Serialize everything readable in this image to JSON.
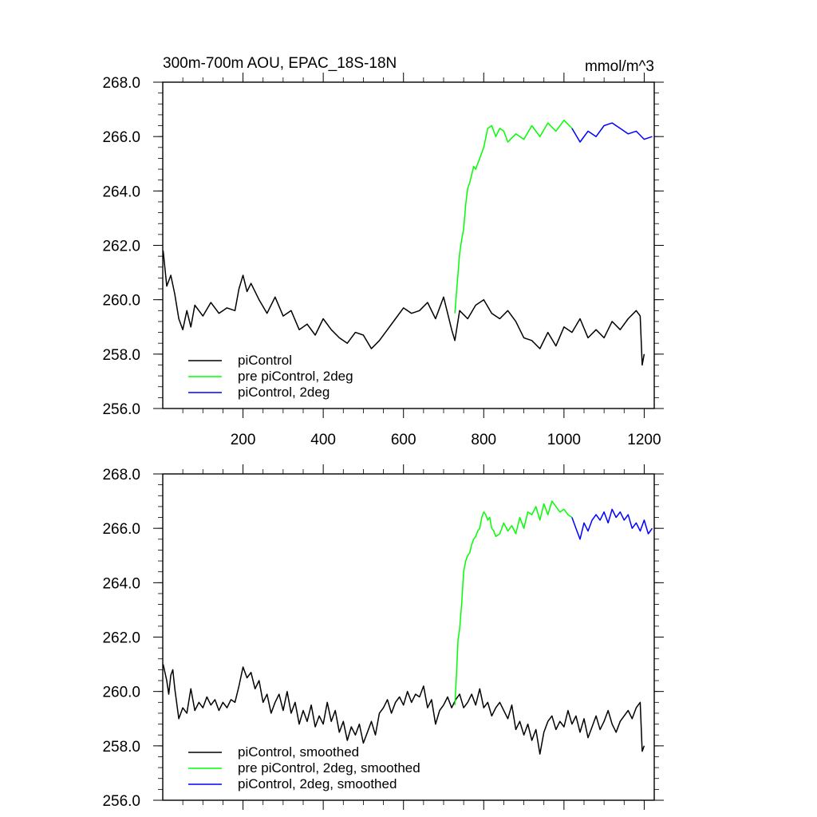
{
  "chart_data": [
    {
      "type": "line",
      "title": "300m-700m AOU, EPAC_18S-18N",
      "units": "mmol/m^3",
      "xlim": [
        0,
        1225
      ],
      "ylim": [
        256.0,
        268.0
      ],
      "x_ticks": [
        200,
        400,
        600,
        800,
        1000,
        1200
      ],
      "x_tick_labels": [
        "200",
        "400",
        "600",
        "800",
        "1000",
        "1200"
      ],
      "y_ticks": [
        256.0,
        258.0,
        260.0,
        262.0,
        264.0,
        266.0,
        268.0
      ],
      "y_tick_labels": [
        "256.0",
        "258.0",
        "260.0",
        "262.0",
        "264.0",
        "266.0",
        "268.0"
      ],
      "legend_position": "bottom-left",
      "series": [
        {
          "name": "piControl",
          "color": "#000000",
          "x": [
            1,
            10,
            20,
            30,
            40,
            50,
            60,
            70,
            80,
            100,
            120,
            140,
            160,
            180,
            190,
            200,
            210,
            220,
            240,
            260,
            280,
            300,
            320,
            340,
            360,
            380,
            400,
            420,
            440,
            460,
            480,
            500,
            520,
            540,
            560,
            580,
            600,
            620,
            640,
            660,
            680,
            700,
            720,
            728,
            740,
            760,
            780,
            800,
            820,
            840,
            860,
            880,
            900,
            920,
            940,
            960,
            980,
            1000,
            1020,
            1040,
            1060,
            1080,
            1100,
            1120,
            1140,
            1160,
            1180,
            1190,
            1195,
            1200
          ],
          "values": [
            261.8,
            260.5,
            260.9,
            260.2,
            259.3,
            258.9,
            259.6,
            259.0,
            259.8,
            259.4,
            259.9,
            259.5,
            259.7,
            259.6,
            260.4,
            260.9,
            260.3,
            260.6,
            260.0,
            259.5,
            260.1,
            259.4,
            259.6,
            258.9,
            259.1,
            258.7,
            259.3,
            258.9,
            258.6,
            258.4,
            258.8,
            258.7,
            258.2,
            258.5,
            258.9,
            259.3,
            259.7,
            259.5,
            259.6,
            259.9,
            259.3,
            260.1,
            258.9,
            258.5,
            259.6,
            259.3,
            259.8,
            260.0,
            259.5,
            259.3,
            259.6,
            259.2,
            258.6,
            258.5,
            258.2,
            258.8,
            258.3,
            259.0,
            258.8,
            259.3,
            258.6,
            258.9,
            258.6,
            259.2,
            258.9,
            259.3,
            259.6,
            259.4,
            257.6,
            258.0
          ]
        },
        {
          "name": "pre piControl, 2deg",
          "color": "#00ff00",
          "x": [
            728,
            735,
            740,
            745,
            750,
            755,
            760,
            765,
            770,
            775,
            780,
            790,
            800,
            810,
            820,
            830,
            840,
            850,
            860,
            880,
            900,
            920,
            940,
            960,
            980,
            1000,
            1020
          ],
          "values": [
            259.5,
            260.8,
            261.7,
            262.2,
            262.6,
            263.5,
            264.1,
            264.3,
            264.6,
            264.9,
            264.8,
            265.2,
            265.6,
            266.3,
            266.4,
            266.0,
            266.3,
            266.2,
            265.8,
            266.1,
            265.9,
            266.4,
            266.0,
            266.5,
            266.2,
            266.6,
            266.3
          ]
        },
        {
          "name": "piControl, 2deg",
          "color": "#0000ff",
          "x": [
            1020,
            1040,
            1060,
            1080,
            1100,
            1120,
            1140,
            1160,
            1180,
            1200,
            1220
          ],
          "values": [
            266.3,
            265.8,
            266.2,
            266.0,
            266.4,
            266.5,
            266.3,
            266.1,
            266.2,
            265.9,
            266.0
          ]
        }
      ]
    },
    {
      "type": "line",
      "xlim": [
        0,
        1225
      ],
      "ylim": [
        256.0,
        268.0
      ],
      "y_ticks": [
        256.0,
        258.0,
        260.0,
        262.0,
        264.0,
        266.0,
        268.0
      ],
      "y_tick_labels": [
        "256.0",
        "258.0",
        "260.0",
        "262.0",
        "264.0",
        "266.0",
        "268.0"
      ],
      "legend_position": "bottom-left",
      "series": [
        {
          "name": "piControl, smoothed",
          "color": "#000000",
          "x": [
            1,
            10,
            15,
            20,
            25,
            30,
            40,
            50,
            60,
            70,
            80,
            90,
            100,
            110,
            120,
            130,
            140,
            150,
            160,
            170,
            180,
            190,
            200,
            210,
            220,
            230,
            240,
            250,
            260,
            270,
            280,
            290,
            300,
            310,
            320,
            330,
            340,
            350,
            360,
            370,
            380,
            390,
            400,
            410,
            420,
            430,
            440,
            450,
            460,
            470,
            480,
            490,
            500,
            510,
            520,
            530,
            540,
            550,
            560,
            570,
            580,
            590,
            600,
            610,
            620,
            630,
            640,
            650,
            660,
            670,
            680,
            690,
            700,
            710,
            720,
            730,
            740,
            750,
            760,
            770,
            780,
            790,
            800,
            810,
            820,
            830,
            840,
            850,
            860,
            870,
            880,
            890,
            900,
            910,
            920,
            930,
            940,
            950,
            960,
            970,
            980,
            990,
            1000,
            1010,
            1020,
            1030,
            1040,
            1050,
            1060,
            1070,
            1080,
            1090,
            1100,
            1110,
            1120,
            1130,
            1140,
            1150,
            1160,
            1170,
            1180,
            1190,
            1195,
            1200
          ],
          "values": [
            261.0,
            260.4,
            259.9,
            260.6,
            260.8,
            260.1,
            259.0,
            259.4,
            259.2,
            260.1,
            259.3,
            259.6,
            259.4,
            259.8,
            259.5,
            259.7,
            259.3,
            259.6,
            259.4,
            259.7,
            259.6,
            260.2,
            260.9,
            260.5,
            260.7,
            260.1,
            260.4,
            259.6,
            259.9,
            259.2,
            259.6,
            259.9,
            259.3,
            260.0,
            259.2,
            259.6,
            258.8,
            259.3,
            258.9,
            259.5,
            258.7,
            259.1,
            258.8,
            259.6,
            258.9,
            259.3,
            258.5,
            258.9,
            258.2,
            258.7,
            258.4,
            258.8,
            258.1,
            258.5,
            258.9,
            258.4,
            259.2,
            259.4,
            259.7,
            259.2,
            259.6,
            259.8,
            259.5,
            260.0,
            259.6,
            259.9,
            259.8,
            260.2,
            259.4,
            259.7,
            258.8,
            259.3,
            259.5,
            259.8,
            259.4,
            259.7,
            259.9,
            259.4,
            259.6,
            259.9,
            259.5,
            260.1,
            259.4,
            259.6,
            259.1,
            259.4,
            259.6,
            259.3,
            259.0,
            259.5,
            258.6,
            258.9,
            258.4,
            258.8,
            258.2,
            258.6,
            257.7,
            258.5,
            258.9,
            259.1,
            258.6,
            258.9,
            258.7,
            259.3,
            258.8,
            259.1,
            258.5,
            259.0,
            258.3,
            258.7,
            259.1,
            258.6,
            258.9,
            259.3,
            258.8,
            258.5,
            258.9,
            259.1,
            259.3,
            259.0,
            259.4,
            259.6,
            257.8,
            258.0
          ]
        },
        {
          "name": "pre piControl, 2deg, smoothed",
          "color": "#00ff00",
          "x": [
            728,
            732,
            736,
            740,
            745,
            750,
            755,
            760,
            765,
            770,
            775,
            780,
            785,
            790,
            795,
            800,
            805,
            810,
            815,
            820,
            825,
            830,
            840,
            850,
            860,
            870,
            880,
            890,
            900,
            910,
            920,
            930,
            940,
            950,
            960,
            970,
            980,
            990,
            1000,
            1010,
            1020
          ],
          "values": [
            259.5,
            260.6,
            261.9,
            262.3,
            263.2,
            264.4,
            264.8,
            265.0,
            265.1,
            265.4,
            265.6,
            265.7,
            265.9,
            266.0,
            266.4,
            266.6,
            266.5,
            266.3,
            266.4,
            266.0,
            265.9,
            265.7,
            265.8,
            266.2,
            265.9,
            266.1,
            265.8,
            266.4,
            266.0,
            266.6,
            266.5,
            266.8,
            266.3,
            266.9,
            266.5,
            267.0,
            266.8,
            266.6,
            266.7,
            266.5,
            266.4
          ]
        },
        {
          "name": "piControl, 2deg, smoothed",
          "color": "#0000ff",
          "x": [
            1020,
            1030,
            1040,
            1050,
            1060,
            1070,
            1080,
            1090,
            1100,
            1110,
            1120,
            1130,
            1140,
            1150,
            1160,
            1170,
            1180,
            1190,
            1200,
            1210,
            1220
          ],
          "values": [
            266.4,
            266.0,
            265.6,
            266.2,
            265.9,
            266.3,
            266.5,
            266.3,
            266.6,
            266.2,
            266.7,
            266.4,
            266.6,
            266.3,
            266.5,
            266.0,
            266.2,
            265.9,
            266.3,
            265.8,
            266.0
          ]
        }
      ]
    }
  ]
}
